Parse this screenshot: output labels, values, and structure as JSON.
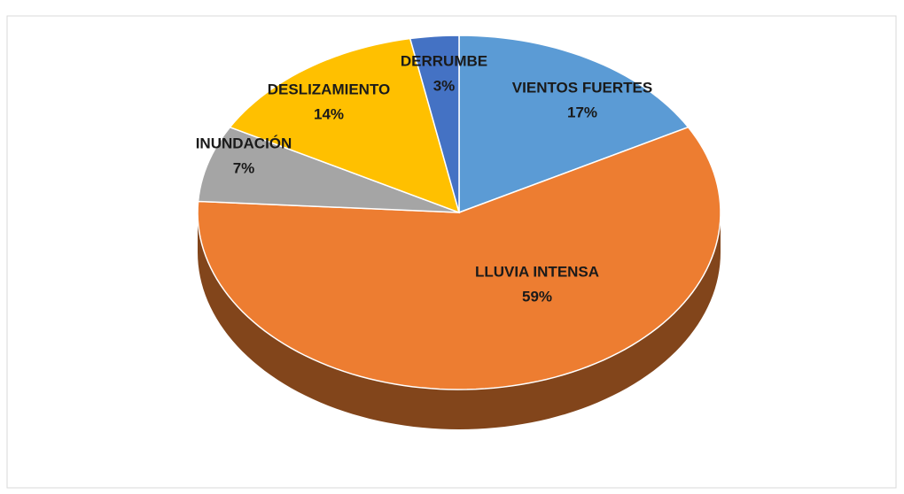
{
  "chart_data": {
    "type": "pie3d",
    "categories": [
      "VIENTOS FUERTES",
      "LLUVIA INTENSA",
      "INUNDACIÓN",
      "DESLIZAMIENTO",
      "DERRUMBE"
    ],
    "values": [
      17,
      59,
      7,
      14,
      3
    ],
    "value_labels": [
      "17%",
      "59%",
      "7%",
      "14%",
      "3%"
    ],
    "colors": [
      "#5b9bd5",
      "#ed7d31",
      "#a5a5a5",
      "#ffc000",
      "#4472c4"
    ]
  }
}
